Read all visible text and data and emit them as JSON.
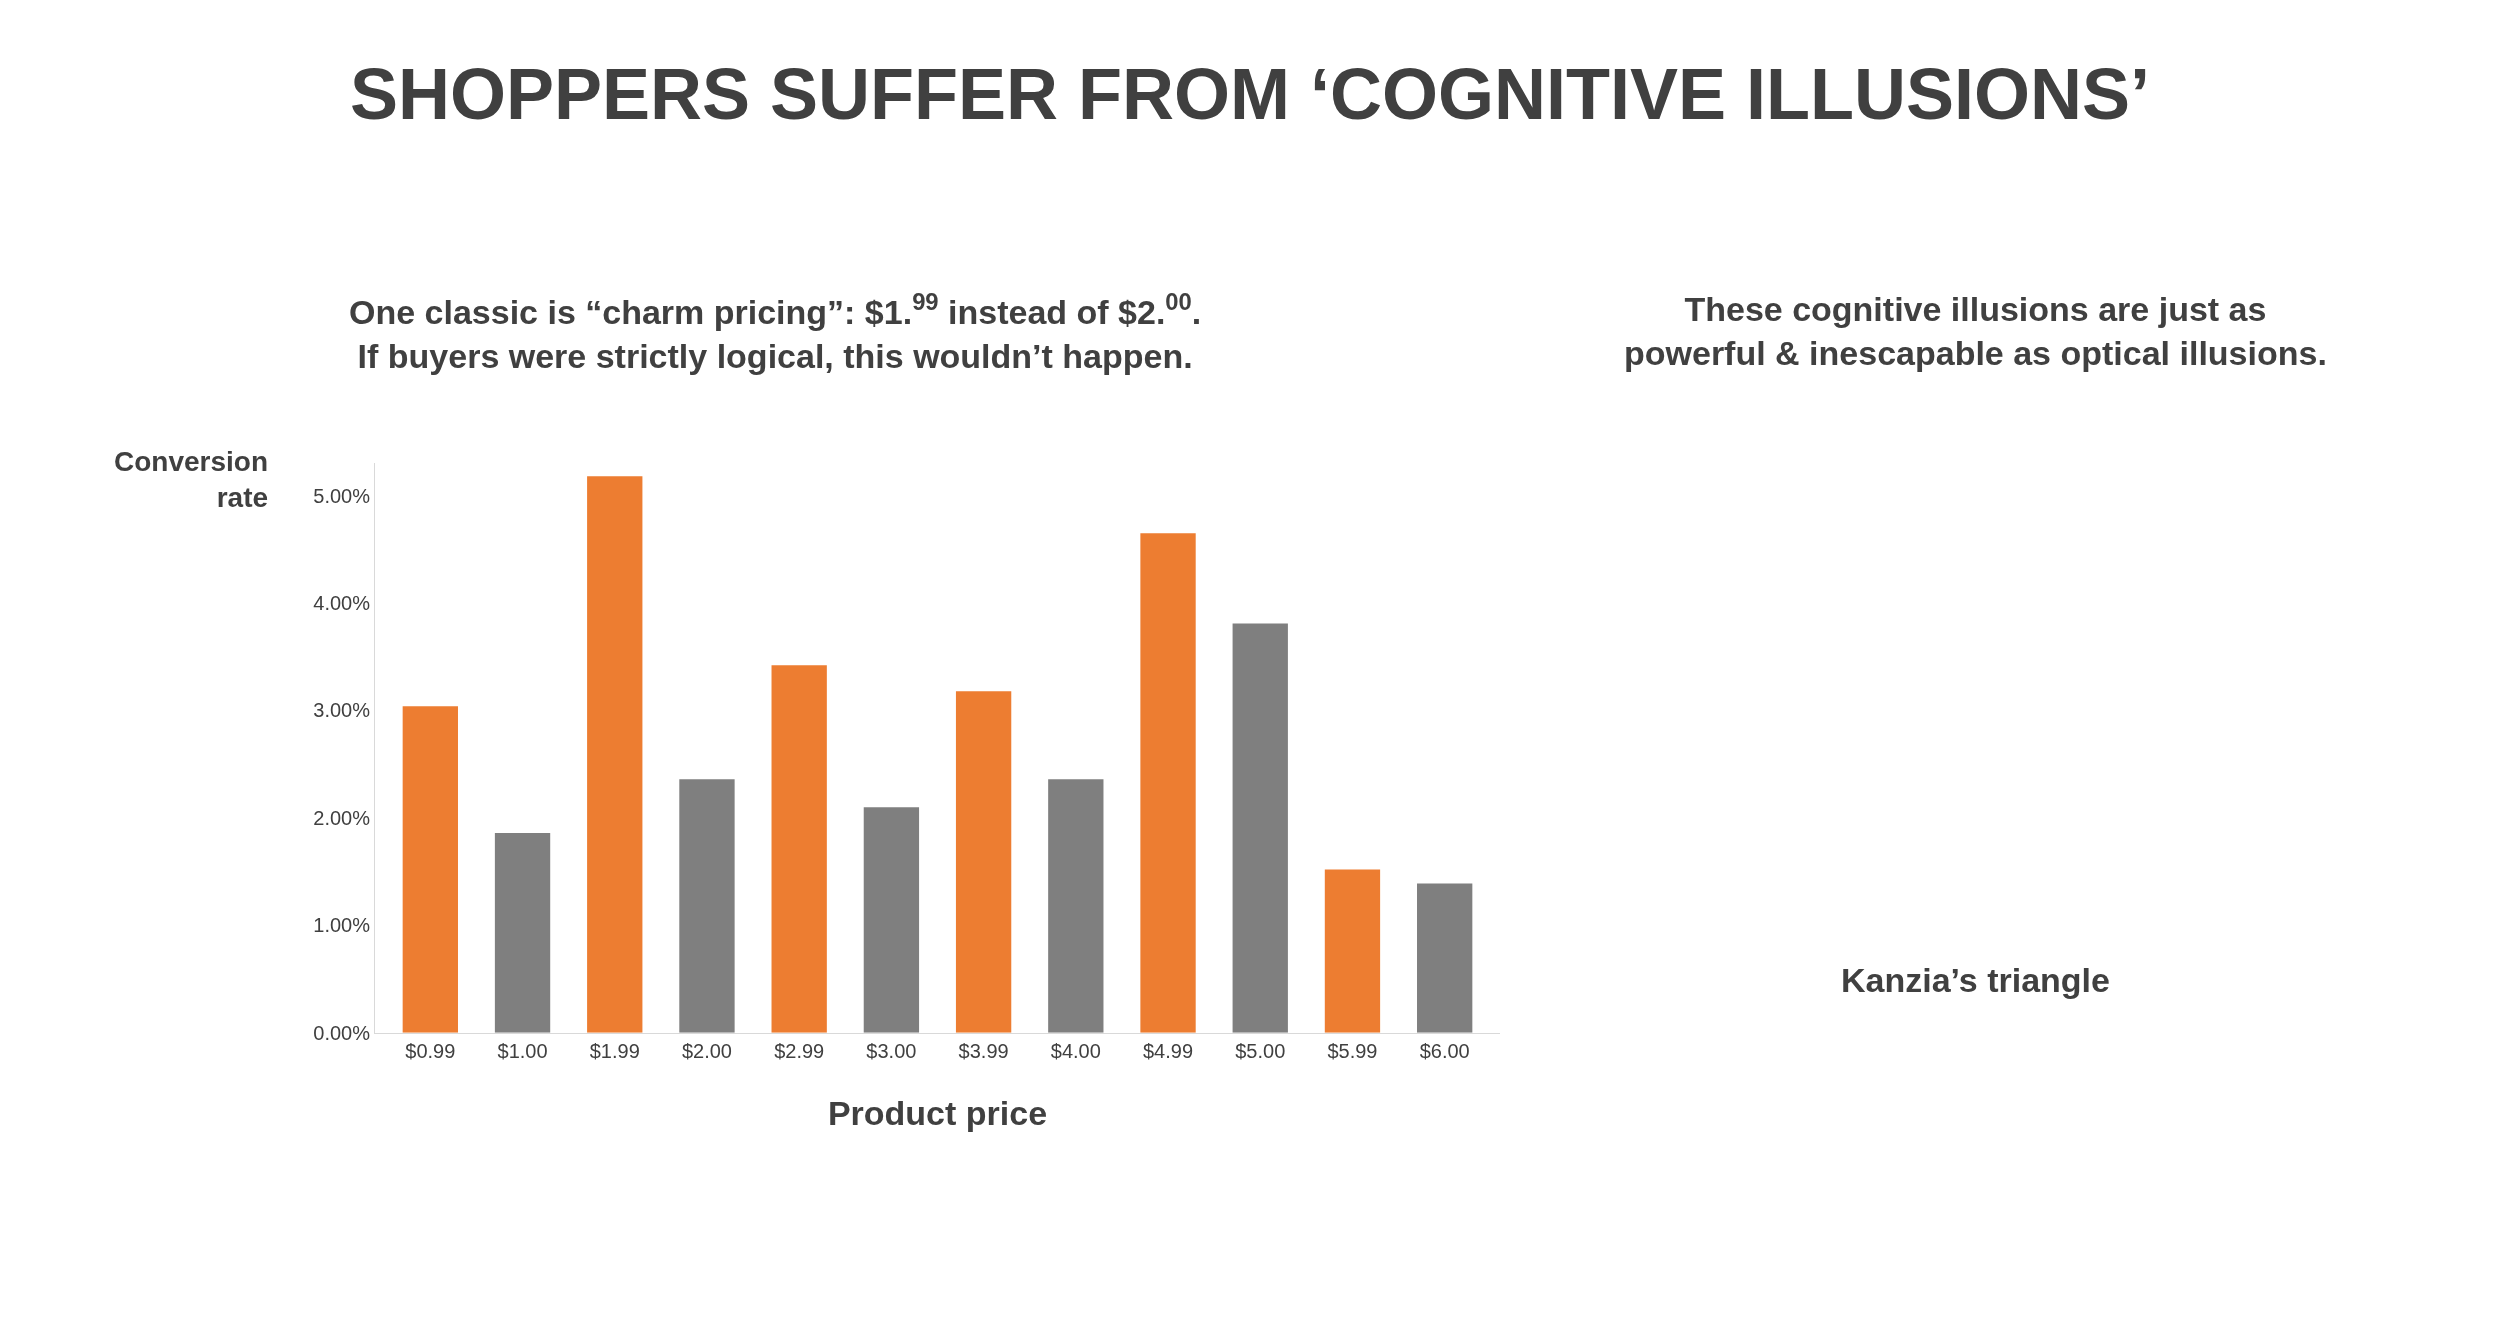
{
  "chart_data": {
    "type": "bar",
    "title": "SHOPPERS SUFFER FROM ‘COGNITIVE ILLUSIONS’",
    "subtitle": "One classic is “charm pricing”: $1.$^{99}$ instead of $2.$^{00}$.\nIf buyers were strictly logical, this wouldn’t happen.",
    "xlabel": "Product price",
    "ylabel": "Conversion\nrate",
    "categories": [
      "$0.99",
      "$1.00",
      "$1.99",
      "$2.00",
      "$2.99",
      "$3.00",
      "$3.99",
      "$4.00",
      "$4.99",
      "$5.00",
      "$5.99",
      "$6.00"
    ],
    "values": [
      3.04,
      1.86,
      5.18,
      2.36,
      3.42,
      2.1,
      3.18,
      2.36,
      4.65,
      3.81,
      1.52,
      1.39
    ],
    "colors": [
      "#ed7d31",
      "#7f7f7f",
      "#ed7d31",
      "#7f7f7f",
      "#ed7d31",
      "#7f7f7f",
      "#ed7d31",
      "#7f7f7f",
      "#ed7d31",
      "#7f7f7f",
      "#ed7d31",
      "#7f7f7f"
    ],
    "ylim": [
      0,
      5.3
    ],
    "yticks": [
      {
        "value": 0,
        "label": "0.00%"
      },
      {
        "value": 1,
        "label": "1.00%"
      },
      {
        "value": 2,
        "label": "2.00%"
      },
      {
        "value": 3,
        "label": "3.00%"
      },
      {
        "value": 4,
        "label": "4.00%"
      },
      {
        "value": 5,
        "label": "5.00%"
      }
    ],
    "annotations": [
      "These cognitive illusions are just as\npowerful & inescapable as optical illusions.",
      "Kanzia’s triangle"
    ],
    "relative": false
  }
}
